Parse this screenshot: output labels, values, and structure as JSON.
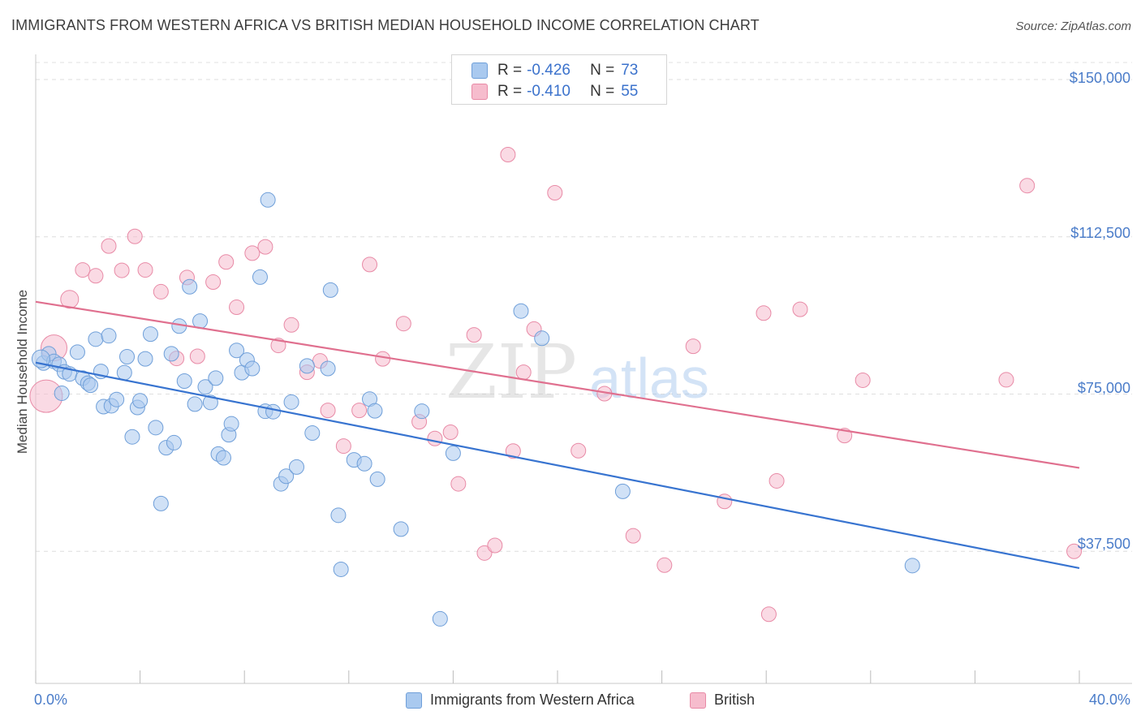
{
  "title": "IMMIGRANTS FROM WESTERN AFRICA VS BRITISH MEDIAN HOUSEHOLD INCOME CORRELATION CHART",
  "source": "Source: ZipAtlas.com",
  "watermark": {
    "zip": "ZIP",
    "atlas": "atlas"
  },
  "legend": {
    "r_label": "R =",
    "n_label": "N =",
    "series": [
      {
        "r": "-0.426",
        "n": "73"
      },
      {
        "r": "-0.410",
        "n": "55"
      }
    ]
  },
  "colors": {
    "blue_fill": "#a9c9ef",
    "blue_stroke": "#6f9fd9",
    "blue_line": "#3874d0",
    "pink_fill": "#f6bccd",
    "pink_stroke": "#e88aa6",
    "pink_line": "#e0708f",
    "tick_text": "#4a7cc9"
  },
  "chart_data": {
    "type": "scatter",
    "ylabel": "Median Household Income",
    "xlim": [
      0,
      40
    ],
    "ylim": [
      6000,
      156000
    ],
    "x_tick_labels": {
      "min": "0.0%",
      "max": "40.0%"
    },
    "y_ticks": [
      {
        "value": 37500,
        "label": "$37,500"
      },
      {
        "value": 75000,
        "label": "$75,000"
      },
      {
        "value": 112500,
        "label": "$112,500"
      },
      {
        "value": 150000,
        "label": "$150,000"
      }
    ],
    "grid": true,
    "legend_position": "top-center",
    "series": [
      {
        "name": "Immigrants from Western Africa",
        "trend": {
          "x": [
            0,
            40
          ],
          "y": [
            82500,
            33500
          ]
        },
        "points": [
          [
            0.3,
            82.4
          ],
          [
            0.5,
            84.6
          ],
          [
            0.7,
            82.8
          ],
          [
            0.9,
            82.1
          ],
          [
            1.0,
            75.2
          ],
          [
            1.1,
            80.3
          ],
          [
            1.3,
            79.8
          ],
          [
            1.6,
            85.0
          ],
          [
            1.8,
            78.8
          ],
          [
            2.0,
            77.6
          ],
          [
            2.1,
            77.1
          ],
          [
            2.3,
            88.1
          ],
          [
            2.5,
            80.4
          ],
          [
            2.6,
            72.0
          ],
          [
            2.8,
            88.9
          ],
          [
            2.9,
            72.2
          ],
          [
            3.1,
            73.7
          ],
          [
            3.4,
            80.1
          ],
          [
            3.5,
            83.9
          ],
          [
            3.7,
            64.8
          ],
          [
            3.9,
            71.8
          ],
          [
            4.0,
            73.4
          ],
          [
            4.2,
            83.4
          ],
          [
            4.4,
            89.3
          ],
          [
            4.6,
            67.0
          ],
          [
            4.8,
            48.9
          ],
          [
            5.0,
            62.2
          ],
          [
            5.2,
            84.6
          ],
          [
            5.3,
            63.4
          ],
          [
            5.5,
            91.2
          ],
          [
            5.7,
            78.1
          ],
          [
            5.9,
            100.6
          ],
          [
            6.1,
            72.6
          ],
          [
            6.3,
            92.4
          ],
          [
            6.5,
            76.7
          ],
          [
            6.7,
            73.0
          ],
          [
            6.9,
            78.8
          ],
          [
            7.0,
            60.7
          ],
          [
            7.2,
            59.8
          ],
          [
            7.4,
            65.3
          ],
          [
            7.5,
            67.9
          ],
          [
            7.7,
            85.4
          ],
          [
            7.9,
            80.1
          ],
          [
            8.1,
            83.1
          ],
          [
            8.3,
            81.1
          ],
          [
            8.6,
            102.9
          ],
          [
            8.8,
            70.9
          ],
          [
            8.9,
            121.3
          ],
          [
            9.1,
            70.8
          ],
          [
            9.4,
            53.6
          ],
          [
            9.6,
            55.4
          ],
          [
            9.8,
            73.1
          ],
          [
            10.0,
            57.6
          ],
          [
            10.4,
            81.7
          ],
          [
            10.6,
            65.7
          ],
          [
            11.2,
            81.1
          ],
          [
            11.3,
            99.8
          ],
          [
            11.6,
            46.1
          ],
          [
            11.7,
            33.2
          ],
          [
            12.2,
            59.3
          ],
          [
            12.6,
            58.4
          ],
          [
            12.8,
            73.8
          ],
          [
            13.0,
            71.0
          ],
          [
            13.1,
            54.7
          ],
          [
            14.0,
            42.8
          ],
          [
            14.8,
            70.9
          ],
          [
            15.5,
            21.4
          ],
          [
            16.0,
            60.9
          ],
          [
            18.6,
            94.8
          ],
          [
            19.4,
            88.3
          ],
          [
            22.5,
            51.8
          ],
          [
            33.6,
            34.1
          ],
          [
            0.2,
            83.4
          ]
        ]
      },
      {
        "name": "British",
        "trend": {
          "x": [
            0,
            40
          ],
          "y": [
            97000,
            57400
          ]
        },
        "points": [
          [
            0.4,
            74.5
          ],
          [
            0.7,
            86.0
          ],
          [
            1.3,
            97.6
          ],
          [
            1.8,
            104.6
          ],
          [
            2.3,
            103.2
          ],
          [
            2.8,
            110.3
          ],
          [
            3.3,
            104.5
          ],
          [
            3.8,
            112.6
          ],
          [
            4.2,
            104.6
          ],
          [
            4.8,
            99.4
          ],
          [
            5.4,
            83.5
          ],
          [
            5.8,
            102.8
          ],
          [
            6.2,
            84.0
          ],
          [
            6.8,
            101.7
          ],
          [
            7.3,
            106.5
          ],
          [
            7.7,
            95.7
          ],
          [
            8.3,
            108.6
          ],
          [
            8.8,
            110.1
          ],
          [
            9.3,
            86.6
          ],
          [
            9.8,
            91.5
          ],
          [
            10.4,
            80.2
          ],
          [
            10.9,
            82.9
          ],
          [
            11.2,
            71.1
          ],
          [
            11.8,
            62.6
          ],
          [
            12.4,
            71.1
          ],
          [
            12.8,
            105.9
          ],
          [
            13.3,
            83.4
          ],
          [
            14.1,
            91.8
          ],
          [
            14.7,
            68.4
          ],
          [
            15.3,
            64.4
          ],
          [
            15.9,
            65.9
          ],
          [
            16.2,
            53.6
          ],
          [
            16.8,
            89.1
          ],
          [
            17.2,
            37.1
          ],
          [
            17.6,
            38.9
          ],
          [
            18.1,
            132.1
          ],
          [
            18.3,
            61.4
          ],
          [
            18.7,
            80.2
          ],
          [
            19.1,
            90.5
          ],
          [
            19.9,
            123.0
          ],
          [
            20.8,
            61.5
          ],
          [
            21.8,
            75.1
          ],
          [
            22.9,
            41.2
          ],
          [
            24.1,
            34.2
          ],
          [
            25.2,
            86.4
          ],
          [
            26.4,
            49.4
          ],
          [
            27.9,
            94.3
          ],
          [
            28.1,
            22.5
          ],
          [
            28.4,
            54.3
          ],
          [
            29.3,
            95.2
          ],
          [
            31.0,
            65.1
          ],
          [
            31.7,
            78.3
          ],
          [
            37.2,
            78.4
          ],
          [
            38.0,
            124.7
          ],
          [
            39.8,
            37.5
          ]
        ]
      }
    ]
  }
}
